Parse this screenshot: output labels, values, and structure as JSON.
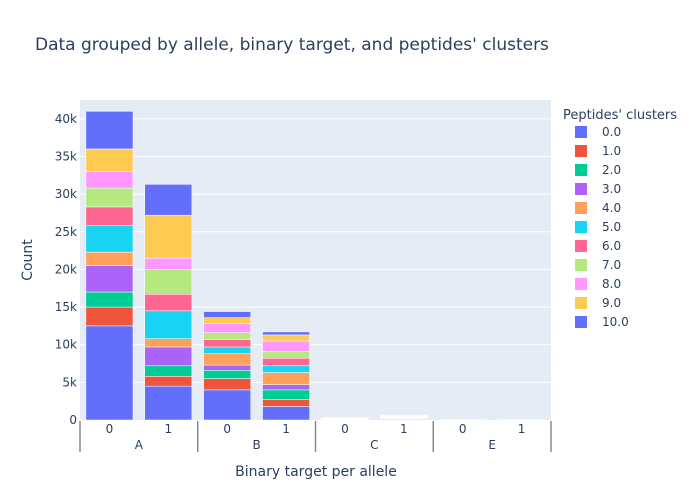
{
  "chart_data": {
    "type": "bar",
    "stacked": true,
    "title": "Data grouped by allele, binary target, and peptides' clusters",
    "xlabel": "Binary target per allele",
    "ylabel": "Count",
    "ylim": [
      0,
      42500
    ],
    "y_ticks": [
      0,
      5000,
      10000,
      15000,
      20000,
      25000,
      30000,
      35000,
      40000
    ],
    "y_tick_labels": [
      "0",
      "5k",
      "10k",
      "15k",
      "20k",
      "25k",
      "30k",
      "35k",
      "40k"
    ],
    "grid": true,
    "legend_placement": "right",
    "legend_title": "Peptides' clusters",
    "groups": [
      "A",
      "B",
      "C",
      "E"
    ],
    "categories": [
      "0",
      "1",
      "0",
      "1",
      "0",
      "1",
      "0",
      "1"
    ],
    "category_groups": [
      "A",
      "A",
      "B",
      "B",
      "C",
      "C",
      "E",
      "E"
    ],
    "series": [
      {
        "name": "0.0",
        "color": "#636efa",
        "values": [
          12500,
          4500,
          4000,
          1800,
          50,
          90,
          2,
          5
        ]
      },
      {
        "name": "1.0",
        "color": "#EF553B",
        "values": [
          2500,
          1300,
          1500,
          900,
          20,
          40,
          1,
          2
        ]
      },
      {
        "name": "2.0",
        "color": "#00cc96",
        "values": [
          2000,
          1400,
          1100,
          1300,
          20,
          40,
          1,
          2
        ]
      },
      {
        "name": "3.0",
        "color": "#ab63fa",
        "values": [
          3500,
          2500,
          700,
          700,
          20,
          40,
          1,
          2
        ]
      },
      {
        "name": "4.0",
        "color": "#FFA15A",
        "values": [
          1800,
          1100,
          1500,
          1600,
          30,
          60,
          1,
          2
        ]
      },
      {
        "name": "5.0",
        "color": "#19d3f3",
        "values": [
          3500,
          3700,
          900,
          900,
          30,
          60,
          1,
          2
        ]
      },
      {
        "name": "6.0",
        "color": "#FF6692",
        "values": [
          2500,
          2200,
          1000,
          1000,
          30,
          70,
          1,
          2
        ]
      },
      {
        "name": "7.0",
        "color": "#B6E880",
        "values": [
          2500,
          3300,
          900,
          900,
          30,
          70,
          1,
          2
        ]
      },
      {
        "name": "8.0",
        "color": "#FF97FF",
        "values": [
          2200,
          1500,
          1200,
          1400,
          30,
          70,
          1,
          2
        ]
      },
      {
        "name": "9.0",
        "color": "#FECB52",
        "values": [
          3000,
          5700,
          800,
          800,
          30,
          80,
          1,
          2
        ]
      },
      {
        "name": "10.0",
        "color": "#636efa",
        "values": [
          5000,
          4100,
          800,
          400,
          20,
          30,
          1,
          2
        ]
      }
    ]
  }
}
